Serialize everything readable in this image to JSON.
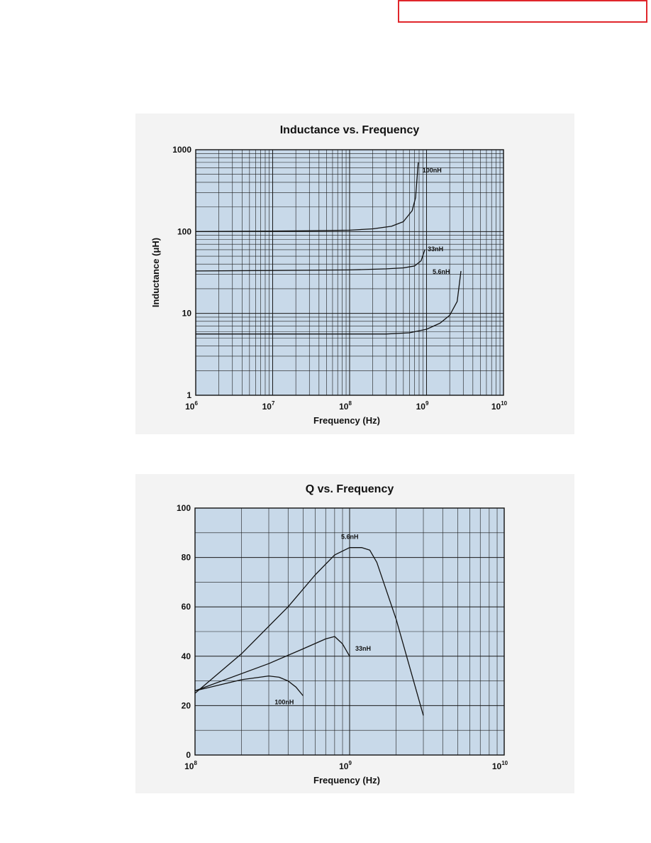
{
  "chart_data": [
    {
      "type": "line",
      "title": "Inductance vs. Frequency",
      "xlabel": "Frequency (Hz)",
      "ylabel": "Inductance (μH)",
      "xscale": "log",
      "yscale": "log",
      "xlim": [
        1000000,
        10000000000
      ],
      "ylim": [
        1,
        1000
      ],
      "xticks": [
        {
          "value": 1000000,
          "base": "10",
          "exp": "6"
        },
        {
          "value": 10000000,
          "base": "10",
          "exp": "7"
        },
        {
          "value": 100000000,
          "base": "10",
          "exp": "8"
        },
        {
          "value": 1000000000,
          "base": "10",
          "exp": "9"
        },
        {
          "value": 10000000000,
          "base": "10",
          "exp": "10"
        }
      ],
      "yticks": [
        {
          "value": 1,
          "label": "1"
        },
        {
          "value": 10,
          "label": "10"
        },
        {
          "value": 100,
          "label": "100"
        },
        {
          "value": 1000,
          "label": "1000"
        }
      ],
      "grid": true,
      "plot_bg": "#c8d9e9",
      "series": [
        {
          "name": "100nH",
          "x": [
            1000000,
            25000000,
            100000000,
            200000000,
            350000000,
            500000000,
            650000000,
            720000000,
            780000000
          ],
          "y": [
            100,
            102,
            104,
            108,
            116,
            132,
            180,
            260,
            700
          ]
        },
        {
          "name": "33nH",
          "x": [
            1000000,
            100000000,
            300000000,
            500000000,
            700000000,
            850000000,
            950000000
          ],
          "y": [
            33,
            34,
            35,
            36,
            38,
            44,
            60
          ]
        },
        {
          "name": "5.6nH",
          "x": [
            1000000,
            300000000,
            600000000,
            1000000000,
            1500000000,
            2000000000,
            2500000000,
            2800000000
          ],
          "y": [
            5.6,
            5.6,
            5.8,
            6.4,
            7.6,
            9.5,
            14,
            33
          ]
        }
      ]
    },
    {
      "type": "line",
      "title": "Q vs. Frequency",
      "xlabel": "Frequency (Hz)",
      "ylabel": "",
      "xscale": "log",
      "yscale": "linear",
      "xlim": [
        100000000,
        10000000000
      ],
      "ylim": [
        0,
        100
      ],
      "xticks": [
        {
          "value": 100000000,
          "base": "10",
          "exp": "8"
        },
        {
          "value": 1000000000,
          "base": "10",
          "exp": "9"
        },
        {
          "value": 10000000000,
          "base": "10",
          "exp": "10"
        }
      ],
      "yticks": [
        {
          "value": 0,
          "label": "0"
        },
        {
          "value": 20,
          "label": "20"
        },
        {
          "value": 40,
          "label": "40"
        },
        {
          "value": 60,
          "label": "60"
        },
        {
          "value": 80,
          "label": "80"
        },
        {
          "value": 100,
          "label": "100"
        }
      ],
      "grid": true,
      "plot_bg": "#c8d9e9",
      "series": [
        {
          "name": "5.6nH",
          "x": [
            100000000,
            200000000,
            400000000,
            600000000,
            800000000,
            1000000000,
            1200000000,
            1350000000,
            1500000000,
            2000000000,
            3000000000
          ],
          "y": [
            25,
            41,
            60,
            73,
            81,
            84,
            84,
            83,
            78,
            55,
            16
          ]
        },
        {
          "name": "33nH",
          "x": [
            100000000,
            300000000,
            500000000,
            700000000,
            800000000,
            900000000,
            1000000000
          ],
          "y": [
            26,
            37,
            43,
            47,
            48,
            45,
            40
          ]
        },
        {
          "name": "100nH",
          "x": [
            100000000,
            200000000,
            300000000,
            350000000,
            400000000,
            450000000,
            500000000
          ],
          "y": [
            26,
            30.5,
            32,
            31.5,
            30,
            27.5,
            24
          ]
        }
      ]
    }
  ]
}
